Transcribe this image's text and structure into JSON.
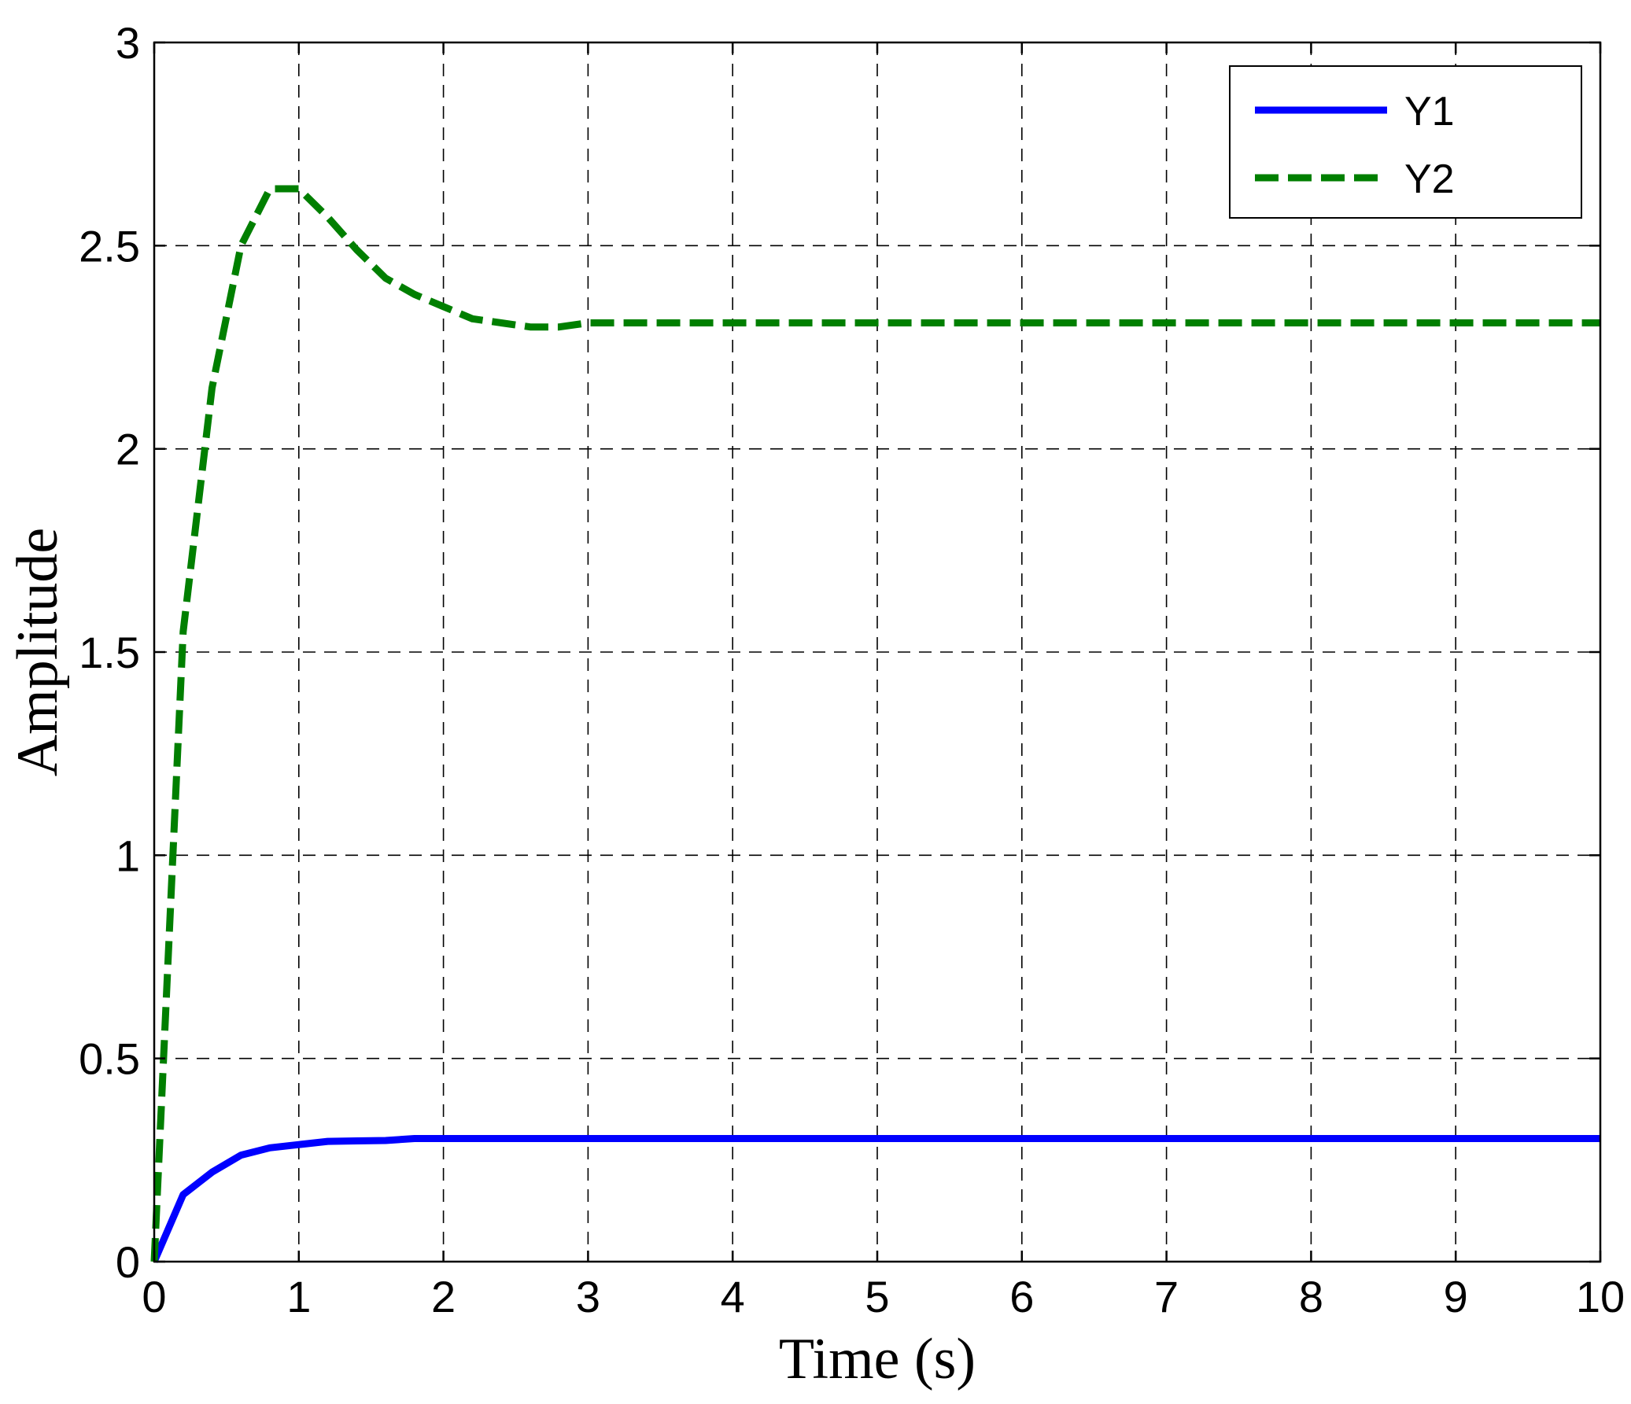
{
  "chart_data": {
    "type": "line",
    "xlabel": "Time (s)",
    "ylabel": "Amplitude",
    "xlim": [
      0,
      10
    ],
    "ylim": [
      0,
      3
    ],
    "xticks": [
      0,
      1,
      2,
      3,
      4,
      5,
      6,
      7,
      8,
      9,
      10
    ],
    "yticks": [
      0,
      0.5,
      1,
      1.5,
      2,
      2.5,
      3
    ],
    "xtick_labels": [
      "0",
      "1",
      "2",
      "3",
      "4",
      "5",
      "6",
      "7",
      "8",
      "9",
      "10"
    ],
    "ytick_labels": [
      "0",
      "0.5",
      "1",
      "1.5",
      "2",
      "2.5",
      "3"
    ],
    "grid": true,
    "legend_position": "top-right",
    "series": [
      {
        "name": "Y1",
        "color": "#0000ff",
        "style": "solid",
        "x": [
          0,
          0.2,
          0.4,
          0.6,
          0.8,
          1.0,
          1.2,
          1.4,
          1.6,
          1.8,
          2.0,
          3.0,
          4.0,
          5.0,
          6.0,
          7.0,
          8.0,
          9.0,
          10.0
        ],
        "y": [
          0,
          0.165,
          0.22,
          0.262,
          0.28,
          0.288,
          0.296,
          0.297,
          0.298,
          0.303,
          0.303,
          0.303,
          0.303,
          0.303,
          0.303,
          0.303,
          0.303,
          0.303,
          0.303
        ]
      },
      {
        "name": "Y2",
        "color": "#007f00",
        "style": "dashed",
        "x": [
          0,
          0.2,
          0.4,
          0.6,
          0.8,
          1.0,
          1.2,
          1.4,
          1.6,
          1.8,
          2.0,
          2.2,
          2.4,
          2.6,
          2.8,
          3.0,
          4.0,
          5.0,
          6.0,
          7.0,
          8.0,
          9.0,
          10.0
        ],
        "y": [
          0,
          1.55,
          2.15,
          2.5,
          2.64,
          2.64,
          2.57,
          2.49,
          2.42,
          2.38,
          2.35,
          2.32,
          2.31,
          2.3,
          2.3,
          2.31,
          2.31,
          2.31,
          2.31,
          2.31,
          2.31,
          2.31,
          2.31
        ]
      }
    ]
  }
}
